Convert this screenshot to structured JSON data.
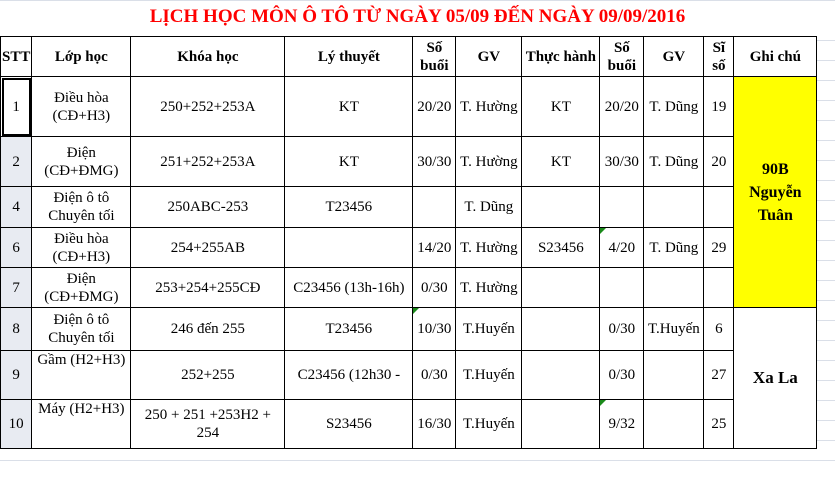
{
  "title": "LỊCH HỌC MÔN Ô TÔ TỪ NGÀY 05/09 ĐẾN NGÀY 09/09/2016",
  "headers": [
    "STT",
    "Lớp học",
    "Khóa học",
    "Lý thuyết",
    "Số buổi",
    "GV",
    "Thực hành",
    "Số buổi",
    "GV",
    "Sĩ số",
    "Ghi chú"
  ],
  "rows": [
    {
      "stt": "1",
      "lop": "Điều hòa (CĐ+H3)",
      "khoa": "250+252+253A",
      "ly": "KT",
      "sb1": "20/20",
      "gv1": "T. Hường",
      "th": "KT",
      "sb2": "20/20",
      "gv2": "T. Dũng",
      "siso": "19"
    },
    {
      "stt": "2",
      "lop": "Điện (CĐ+ĐMG)",
      "khoa": "251+252+253A",
      "ly": "KT",
      "sb1": "30/30",
      "gv1": "T. Hường",
      "th": "KT",
      "sb2": "30/30",
      "gv2": "T. Dũng",
      "siso": "20"
    },
    {
      "stt": "4",
      "lop": "Điện ô tô Chuyên tối",
      "khoa": "250ABC-253",
      "ly": "T23456",
      "sb1": "",
      "gv1": "T. Dũng",
      "th": "",
      "sb2": "",
      "gv2": "",
      "siso": ""
    },
    {
      "stt": "6",
      "lop": "Điều hòa (CĐ+H3)",
      "khoa": "254+255AB",
      "ly": "",
      "sb1": "14/20",
      "gv1": "T. Hường",
      "th": "S23456",
      "sb2": "4/20",
      "gv2": "T. Dũng",
      "siso": "29"
    },
    {
      "stt": "7",
      "lop": "Điện (CĐ+ĐMG)",
      "khoa": "253+254+255CĐ",
      "ly": "C23456 (13h-16h)",
      "sb1": "0/30",
      "gv1": "T. Hường",
      "th": "",
      "sb2": "",
      "gv2": "",
      "siso": ""
    },
    {
      "stt": "8",
      "lop": "Điện ô tô Chuyên tối",
      "khoa": "246 đến 255",
      "ly": "T23456",
      "sb1": "10/30",
      "gv1": "T.Huyến",
      "th": "",
      "sb2": "0/30",
      "gv2": "T.Huyến",
      "siso": "6"
    },
    {
      "stt": "9",
      "lop": "Gầm (H2+H3)",
      "khoa": "252+255",
      "ly": "C23456 (12h30 -",
      "sb1": "0/30",
      "gv1": "T.Huyến",
      "th": "",
      "sb2": "0/30",
      "gv2": "",
      "siso": "27"
    },
    {
      "stt": "10",
      "lop": "Máy (H2+H3)",
      "khoa": "250 + 251 +253H2 + 254",
      "ly": "S23456",
      "sb1": "16/30",
      "gv1": "T.Huyến",
      "th": "",
      "sb2": "9/32",
      "gv2": "",
      "siso": "25"
    }
  ],
  "notes": [
    "90B Nguyễn Tuân",
    "Xa La"
  ],
  "colors": {
    "title": "#ff0000",
    "note_highlight": "#ffff00",
    "row_header": "#e8ebf2"
  }
}
